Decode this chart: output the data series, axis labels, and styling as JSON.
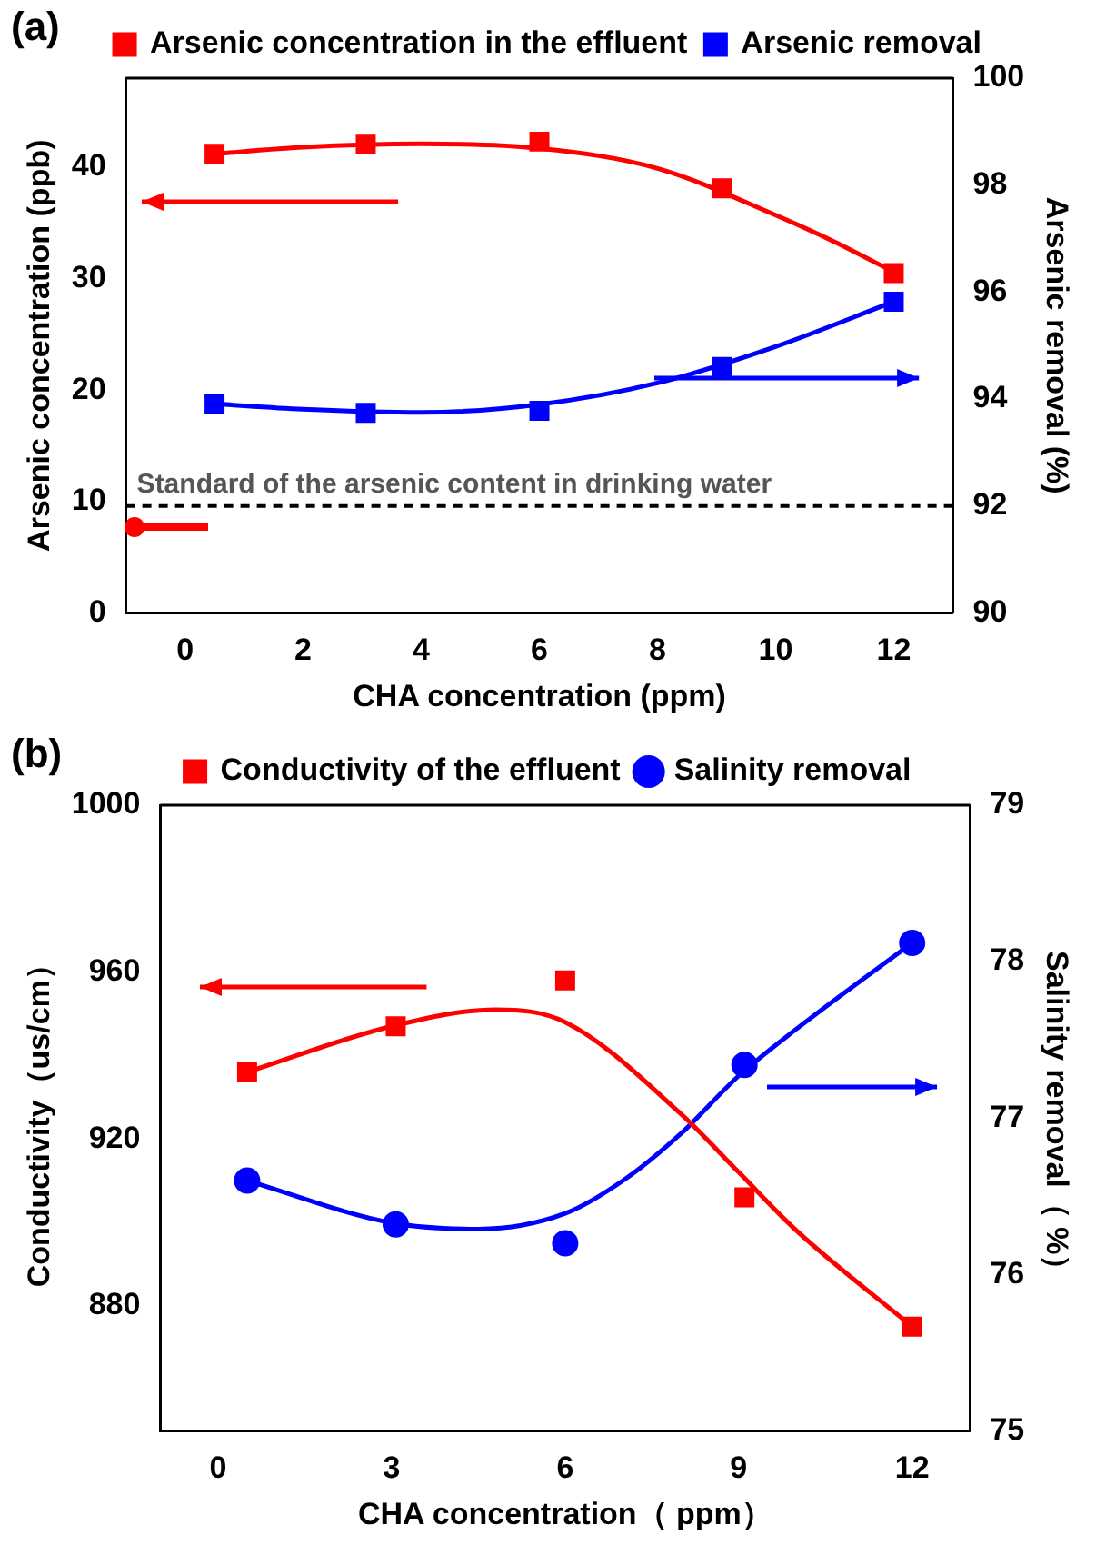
{
  "chart_data": [
    {
      "type": "scatter",
      "annotations": [
        "(a)"
      ],
      "xlabel": "CHA concentration (ppm)",
      "ylabel": "Arsenic concentration (ppb)",
      "y2label": "Arsenic removal (%)",
      "xlim": [
        -1,
        13
      ],
      "xticks": [
        0,
        2,
        4,
        6,
        8,
        10,
        12
      ],
      "ylim": [
        0,
        48
      ],
      "yticks": [
        0,
        10,
        20,
        30,
        40
      ],
      "y2lim": [
        90,
        100
      ],
      "y2ticks": [
        90,
        92,
        94,
        96,
        98,
        100
      ],
      "x": [
        0.5,
        3.06,
        6.0,
        9.1,
        12
      ],
      "series": [
        {
          "name": "Arsenic concentration in the effluent",
          "color": "#ff0000",
          "marker": "square",
          "values": [
            41.2,
            42.1,
            42.3,
            38.1,
            30.5
          ]
        },
        {
          "name": "Arsenic removal",
          "color": "#0000ff",
          "marker": "square",
          "axis": "y2",
          "values": [
            93.91,
            93.74,
            93.78,
            94.6,
            95.82
          ]
        },
        {
          "type": "line",
          "color": "#ff0000",
          "marker": "none",
          "x": [
            0.5,
            2,
            4,
            6,
            8,
            10,
            11,
            12
          ],
          "values": [
            41.2,
            41.8,
            42.1,
            41.7,
            39.9,
            35.7,
            33.3,
            30.6
          ]
        },
        {
          "type": "line",
          "color": "#0000ff",
          "marker": "none",
          "axis": "y2",
          "x": [
            0.5,
            2,
            4,
            6,
            8,
            10,
            12
          ],
          "values": [
            93.91,
            93.81,
            93.75,
            93.9,
            94.3,
            94.98,
            95.82
          ]
        }
      ],
      "ref_lines": [
        {
          "axis": "y2",
          "value": 92,
          "label": "Standard of the arsenic content in drinking water",
          "color": "#000000",
          "line_style": "dashed"
        }
      ],
      "grid": false,
      "legend": "top"
    },
    {
      "type": "scatter",
      "annotations": [
        "(b)"
      ],
      "xlabel": "CHA concentration（ ppm）",
      "ylabel": "Conductivity（us/cm）",
      "y2label": "Salinity removal（ %）",
      "xlim": [
        -1,
        13
      ],
      "xticks": [
        0,
        3,
        6,
        9,
        12
      ],
      "ylim": [
        850,
        1000
      ],
      "yticks": [
        880,
        920,
        960,
        1000
      ],
      "y2lim": [
        75,
        79
      ],
      "y2ticks": [
        75,
        76,
        77,
        78,
        79
      ],
      "x": [
        0.5,
        3.07,
        6.0,
        9.1,
        12
      ],
      "series": [
        {
          "name": "Conductivity of the effluent",
          "color": "#ff0000",
          "marker": "square",
          "values": [
            936,
            947,
            958,
            906,
            875
          ]
        },
        {
          "name": "Salinity removal",
          "color": "#0000ff",
          "marker": "circle",
          "axis": "y2",
          "values": [
            76.6,
            76.32,
            76.2,
            77.34,
            78.12
          ]
        },
        {
          "type": "line",
          "color": "#ff0000",
          "marker": "none",
          "x": [
            0.5,
            3,
            4.8,
            6,
            8,
            9,
            10,
            12
          ],
          "values": [
            936,
            947,
            951,
            948,
            926,
            912,
            898,
            875
          ]
        },
        {
          "type": "line",
          "color": "#0000ff",
          "marker": "none",
          "axis": "y2",
          "x": [
            0.5,
            3,
            4.5,
            6,
            7,
            8,
            9,
            10,
            12
          ],
          "values": [
            76.6,
            76.33,
            76.29,
            76.39,
            76.6,
            76.9,
            77.27,
            77.57,
            78.12
          ]
        }
      ],
      "grid": false,
      "legend": "top"
    }
  ]
}
